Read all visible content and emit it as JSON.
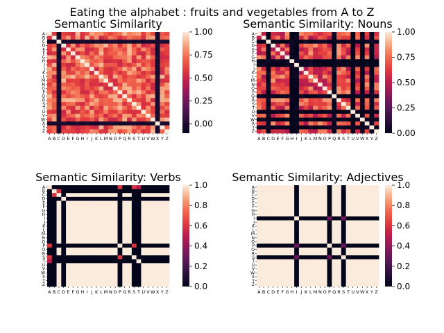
{
  "figure": {
    "suptitle": "Eating the alphabet : fruits and vegetables from A to Z"
  },
  "chart_data": [
    {
      "type": "heatmap",
      "title": "Semantic Similarity",
      "xlabel": "",
      "ylabel": "",
      "categories": [
        "A",
        "B",
        "C",
        "D",
        "E",
        "F",
        "G",
        "H",
        "I",
        "J",
        "K",
        "L",
        "M",
        "N",
        "O",
        "P",
        "Q",
        "R",
        "S",
        "T",
        "U",
        "V",
        "W",
        "X",
        "Y",
        "Z"
      ],
      "colorbar": {
        "ticks": [
          "1.00",
          "0.75",
          "0.50",
          "0.25",
          "0.00"
        ],
        "tick_values": [
          1.0,
          0.75,
          0.5,
          0.25,
          0.0
        ],
        "vmin": -0.1,
        "vmax": 1.0
      },
      "mode": "mixed",
      "low_rows_cols": [
        "C",
        "X"
      ],
      "base_range": [
        0.5,
        0.9
      ],
      "diagonal": 1.0,
      "low_value": -0.05
    },
    {
      "type": "heatmap",
      "title": "Semantic Similarity: Nouns",
      "xlabel": "",
      "ylabel": "",
      "categories": [
        "A",
        "B",
        "C",
        "D",
        "E",
        "F",
        "G",
        "H",
        "I",
        "J",
        "K",
        "L",
        "M",
        "N",
        "O",
        "P",
        "Q",
        "R",
        "S",
        "T",
        "U",
        "V",
        "W",
        "X",
        "Y",
        "Z"
      ],
      "colorbar": {
        "ticks": [
          "1.00",
          "0.75",
          "0.50",
          "0.25",
          "0.00"
        ],
        "tick_values": [
          1.0,
          0.75,
          0.5,
          0.25,
          0.0
        ],
        "vmin": 0.0,
        "vmax": 1.0
      },
      "mode": "mixed",
      "low_rows_cols": [
        "C",
        "H",
        "I",
        "Q",
        "U",
        "W",
        "Y"
      ],
      "base_range": [
        0.45,
        0.85
      ],
      "diagonal": 1.0,
      "low_value": 0.0
    },
    {
      "type": "heatmap",
      "title": "Semantic Similarity: Verbs",
      "xlabel": "",
      "ylabel": "",
      "categories": [
        "A",
        "B",
        "C",
        "D",
        "E",
        "F",
        "G",
        "H",
        "I",
        "J",
        "K",
        "L",
        "M",
        "N",
        "O",
        "P",
        "Q",
        "R",
        "S",
        "T",
        "U",
        "V",
        "W",
        "X",
        "Y",
        "Z"
      ],
      "colorbar": {
        "ticks": [
          "1.0",
          "0.8",
          "0.6",
          "0.4",
          "0.2",
          "0.0"
        ],
        "tick_values": [
          1.0,
          0.8,
          0.6,
          0.4,
          0.2,
          0.0
        ],
        "vmin": 0.0,
        "vmax": 1.0
      },
      "mode": "binary",
      "zero_rows_cols": [
        "A",
        "B",
        "D",
        "P",
        "S",
        "T"
      ],
      "pair_values": [
        [
          "A",
          "P",
          0.6
        ],
        [
          "A",
          "S",
          0.6
        ],
        [
          "B",
          "C",
          0.6
        ],
        [
          "S",
          "P",
          0.6
        ],
        [
          "A",
          "T",
          0.5
        ]
      ],
      "diagonal": 1.0
    },
    {
      "type": "heatmap",
      "title": "Semantic Similarity: Adjectives",
      "xlabel": "",
      "ylabel": "",
      "categories": [
        "A",
        "B",
        "C",
        "D",
        "E",
        "F",
        "G",
        "H",
        "I",
        "J",
        "K",
        "L",
        "M",
        "N",
        "O",
        "P",
        "Q",
        "R",
        "S",
        "T",
        "U",
        "V",
        "W",
        "X",
        "Y",
        "Z"
      ],
      "colorbar": {
        "ticks": [
          "1.0",
          "0.8",
          "0.6",
          "0.4",
          "0.2",
          "0.0"
        ],
        "tick_values": [
          1.0,
          0.8,
          0.6,
          0.4,
          0.2,
          0.0
        ],
        "vmin": 0.0,
        "vmax": 1.0
      },
      "mode": "binary",
      "zero_rows_cols": [
        "I",
        "P",
        "S"
      ],
      "pair_values": [
        [
          "I",
          "P",
          0.3
        ],
        [
          "I",
          "S",
          0.3
        ],
        [
          "P",
          "S",
          0.3
        ]
      ],
      "diagonal": 1.0
    }
  ]
}
